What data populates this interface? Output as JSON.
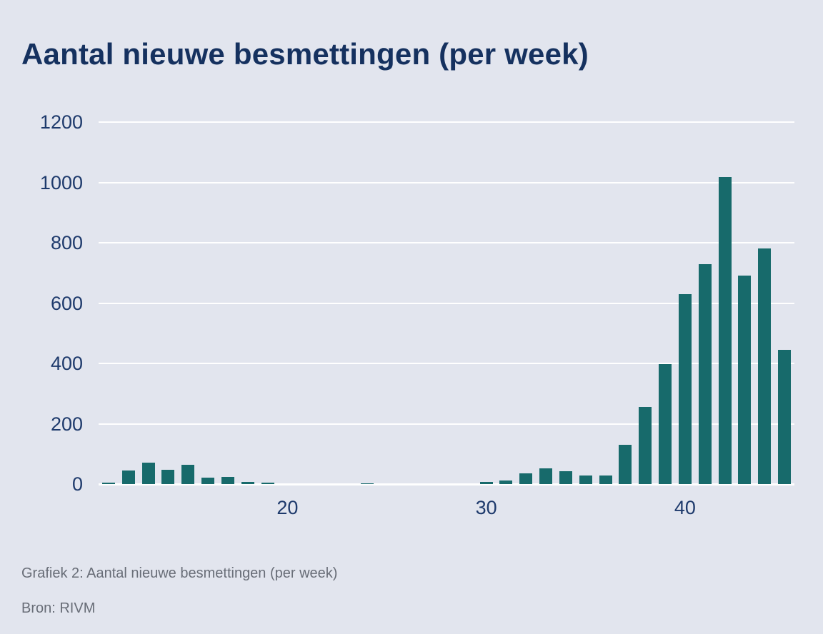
{
  "page": {
    "title": "Aantal nieuwe besmettingen (per week)",
    "caption": "Grafiek 2: Aantal nieuwe besmettingen (per week)",
    "source": "Bron: RIVM"
  },
  "colors": {
    "background": "#e2e5ee",
    "bar": "#176a6b",
    "gridline": "#ffffff",
    "title_text": "#15315f",
    "tick_text": "#1e3a6c",
    "caption_text": "#686d77"
  },
  "chart_data": {
    "type": "bar",
    "title": "Aantal nieuwe besmettingen (per week)",
    "xlabel": "",
    "ylabel": "",
    "x": [
      11,
      12,
      13,
      14,
      15,
      16,
      17,
      18,
      19,
      20,
      21,
      22,
      23,
      24,
      25,
      26,
      27,
      28,
      29,
      30,
      31,
      32,
      33,
      34,
      35,
      36,
      37,
      38,
      39,
      40,
      41,
      42,
      43,
      44,
      45
    ],
    "values": [
      4,
      45,
      72,
      48,
      63,
      22,
      23,
      6,
      4,
      0,
      0,
      0,
      0,
      2,
      0,
      0,
      0,
      0,
      0,
      7,
      11,
      35,
      53,
      43,
      29,
      29,
      130,
      256,
      398,
      630,
      730,
      1018,
      692,
      782,
      446
    ],
    "ylim": [
      0,
      1200
    ],
    "yticks": [
      0,
      200,
      400,
      600,
      800,
      1000,
      1200
    ],
    "xticks": [
      20,
      30,
      40
    ],
    "grid": "horizontal",
    "legend": "none"
  }
}
